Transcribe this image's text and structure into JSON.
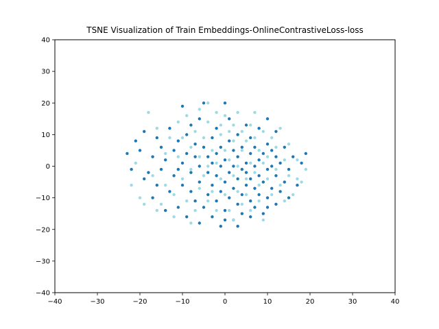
{
  "chart_data": {
    "type": "scatter",
    "title": "TSNE Visualization of Train Embeddings-OnlineContrastiveLoss-loss",
    "xlabel": "",
    "ylabel": "",
    "xlim": [
      -40,
      40
    ],
    "ylim": [
      -40,
      40
    ],
    "xticks": [
      -40,
      -30,
      -20,
      -10,
      0,
      10,
      20,
      30,
      40
    ],
    "yticks": [
      -40,
      -30,
      -20,
      -10,
      0,
      10,
      20,
      30,
      40
    ],
    "grid": false,
    "legend": "none",
    "series": [
      {
        "color": "#1f77b4",
        "points": [
          [
            -22,
            -1
          ],
          [
            -21,
            8
          ],
          [
            -20,
            5
          ],
          [
            -19,
            11
          ],
          [
            -18,
            -2
          ],
          [
            -17,
            3
          ],
          [
            -16,
            -6
          ],
          [
            -16,
            9
          ],
          [
            -15,
            -1
          ],
          [
            -15,
            6
          ],
          [
            -14,
            2
          ],
          [
            -13,
            -8
          ],
          [
            -13,
            12
          ],
          [
            -12,
            -3
          ],
          [
            -12,
            5
          ],
          [
            -11,
            -13
          ],
          [
            -11,
            8
          ],
          [
            -10,
            -6
          ],
          [
            -10,
            1
          ],
          [
            -10,
            19
          ],
          [
            -9,
            -16
          ],
          [
            -9,
            4
          ],
          [
            -9,
            10
          ],
          [
            -8,
            -8
          ],
          [
            -8,
            -2
          ],
          [
            -8,
            13
          ],
          [
            -7,
            -11
          ],
          [
            -7,
            3
          ],
          [
            -7,
            7
          ],
          [
            -6,
            -18
          ],
          [
            -6,
            -5
          ],
          [
            -6,
            0
          ],
          [
            -5,
            -13
          ],
          [
            -5,
            6
          ],
          [
            -5,
            20
          ],
          [
            -4,
            -9
          ],
          [
            -4,
            -2
          ],
          [
            -4,
            3
          ],
          [
            -3,
            -16
          ],
          [
            -3,
            -6
          ],
          [
            -3,
            9
          ],
          [
            -3,
            1
          ],
          [
            -2,
            -11
          ],
          [
            -2,
            -3
          ],
          [
            -2,
            4
          ],
          [
            -2,
            12
          ],
          [
            -1,
            -19
          ],
          [
            -1,
            -8
          ],
          [
            -1,
            0
          ],
          [
            -1,
            6
          ],
          [
            0,
            -14
          ],
          [
            0,
            -5
          ],
          [
            0,
            2
          ],
          [
            0,
            20
          ],
          [
            1,
            -10
          ],
          [
            1,
            -2
          ],
          [
            1,
            8
          ],
          [
            1,
            15
          ],
          [
            2,
            -17
          ],
          [
            2,
            -7
          ],
          [
            2,
            0
          ],
          [
            2,
            5
          ],
          [
            3,
            -12
          ],
          [
            3,
            -4
          ],
          [
            3,
            3
          ],
          [
            3,
            10
          ],
          [
            4,
            -9
          ],
          [
            4,
            -1
          ],
          [
            4,
            6
          ],
          [
            4,
            -15
          ],
          [
            5,
            -6
          ],
          [
            5,
            1
          ],
          [
            5,
            13
          ],
          [
            5,
            -2
          ],
          [
            6,
            -11
          ],
          [
            6,
            -4
          ],
          [
            6,
            4
          ],
          [
            6,
            9
          ],
          [
            7,
            -13
          ],
          [
            7,
            -7
          ],
          [
            7,
            0
          ],
          [
            7,
            6
          ],
          [
            8,
            -9
          ],
          [
            8,
            -3
          ],
          [
            8,
            2
          ],
          [
            8,
            12
          ],
          [
            9,
            -15
          ],
          [
            9,
            -5
          ],
          [
            9,
            4
          ],
          [
            10,
            -10
          ],
          [
            10,
            -1
          ],
          [
            10,
            7
          ],
          [
            10,
            15
          ],
          [
            11,
            -7
          ],
          [
            11,
            0
          ],
          [
            11,
            5
          ],
          [
            12,
            -12
          ],
          [
            12,
            -3
          ],
          [
            12,
            3
          ],
          [
            12,
            11
          ],
          [
            13,
            -8
          ],
          [
            13,
            1
          ],
          [
            14,
            -5
          ],
          [
            14,
            6
          ],
          [
            15,
            -10
          ],
          [
            15,
            -1
          ],
          [
            16,
            3
          ],
          [
            17,
            -6
          ],
          [
            18,
            1
          ],
          [
            19,
            4
          ],
          [
            -23,
            4
          ],
          [
            -19,
            -4
          ],
          [
            -17,
            -10
          ],
          [
            -14,
            -14
          ],
          [
            -11,
            -1
          ],
          [
            -6,
            15
          ],
          [
            0,
            -17
          ],
          [
            3,
            -19
          ],
          [
            6,
            -16
          ],
          [
            10,
            -13
          ]
        ]
      },
      {
        "color": "#9edae5",
        "points": [
          [
            -22,
            -6
          ],
          [
            -21,
            1
          ],
          [
            -20,
            -10
          ],
          [
            -18,
            17
          ],
          [
            -17,
            -3
          ],
          [
            -16,
            12
          ],
          [
            -15,
            -12
          ],
          [
            -14,
            4
          ],
          [
            -14,
            -6
          ],
          [
            -13,
            9
          ],
          [
            -12,
            -16
          ],
          [
            -12,
            -9
          ],
          [
            -11,
            3
          ],
          [
            -11,
            14
          ],
          [
            -10,
            -4
          ],
          [
            -10,
            9
          ],
          [
            -9,
            16
          ],
          [
            -9,
            -11
          ],
          [
            -8,
            -1
          ],
          [
            -8,
            6
          ],
          [
            -7,
            -14
          ],
          [
            -7,
            11
          ],
          [
            -6,
            -7
          ],
          [
            -6,
            3
          ],
          [
            -6,
            18
          ],
          [
            -5,
            -3
          ],
          [
            -5,
            9
          ],
          [
            -4,
            -11
          ],
          [
            -4,
            14
          ],
          [
            -4,
            0
          ],
          [
            -3,
            5
          ],
          [
            -3,
            -8
          ],
          [
            -2,
            17
          ],
          [
            -2,
            -14
          ],
          [
            -2,
            1
          ],
          [
            -1,
            10
          ],
          [
            -1,
            -4
          ],
          [
            -1,
            13
          ],
          [
            0,
            -9
          ],
          [
            0,
            5
          ],
          [
            0,
            16
          ],
          [
            1,
            -14
          ],
          [
            1,
            2
          ],
          [
            1,
            11
          ],
          [
            2,
            -3
          ],
          [
            2,
            8
          ],
          [
            2,
            13
          ],
          [
            3,
            -8
          ],
          [
            3,
            0
          ],
          [
            3,
            17
          ],
          [
            4,
            -12
          ],
          [
            4,
            5
          ],
          [
            4,
            11
          ],
          [
            5,
            -4
          ],
          [
            5,
            8
          ],
          [
            5,
            -9
          ],
          [
            6,
            1
          ],
          [
            6,
            13
          ],
          [
            6,
            -14
          ],
          [
            7,
            -2
          ],
          [
            7,
            9
          ],
          [
            7,
            17
          ],
          [
            8,
            -11
          ],
          [
            8,
            5
          ],
          [
            8,
            -6
          ],
          [
            9,
            1
          ],
          [
            9,
            11
          ],
          [
            9,
            -17
          ],
          [
            10,
            -4
          ],
          [
            10,
            3
          ],
          [
            11,
            -9
          ],
          [
            11,
            9
          ],
          [
            12,
            -1
          ],
          [
            12,
            6
          ],
          [
            13,
            -6
          ],
          [
            13,
            12
          ],
          [
            14,
            -11
          ],
          [
            14,
            2
          ],
          [
            15,
            -3
          ],
          [
            15,
            7
          ],
          [
            16,
            -9
          ],
          [
            17,
            2
          ],
          [
            17,
            -4
          ],
          [
            18,
            -5
          ],
          [
            19,
            -1
          ],
          [
            -19,
            -12
          ],
          [
            -16,
            -14
          ],
          [
            -8,
            -18
          ],
          [
            -4,
            20
          ],
          [
            2,
            -17
          ]
        ]
      }
    ]
  }
}
